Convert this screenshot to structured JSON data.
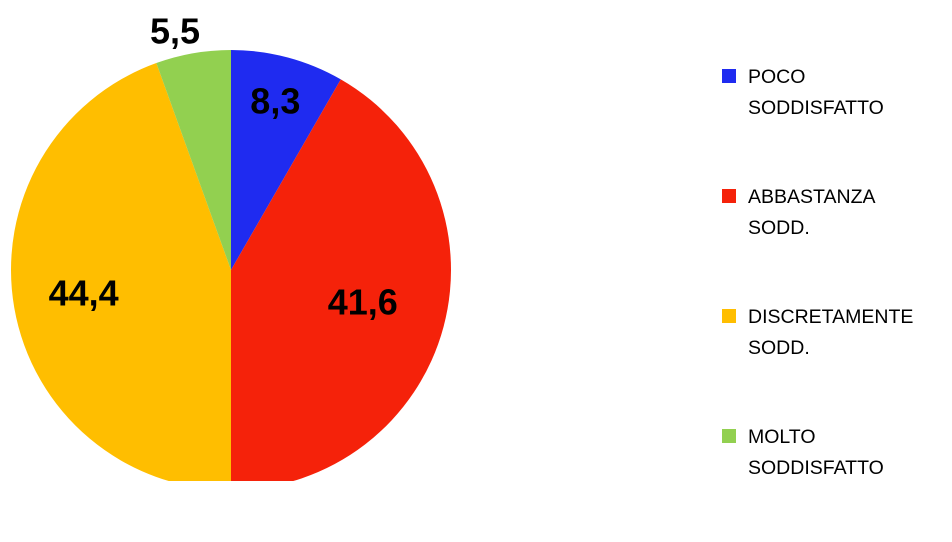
{
  "chart_data": {
    "type": "pie",
    "title": "",
    "slices": [
      {
        "label_lines": [
          "POCO",
          "SODDISFATTO"
        ],
        "value": 8.3,
        "value_label": "8,3",
        "color": "#1f2bf0"
      },
      {
        "label_lines": [
          "ABBASTANZA",
          "SODD."
        ],
        "value": 41.6,
        "value_label": "41,6",
        "color": "#f5220a"
      },
      {
        "label_lines": [
          "DISCRETAMENTE",
          "SODD."
        ],
        "value": 44.4,
        "value_label": "44,4",
        "color": "#ffbe00"
      },
      {
        "label_lines": [
          "MOLTO",
          "SODDISFATTO"
        ],
        "value": 5.5,
        "value_label": "5,5",
        "color": "#92d050"
      }
    ],
    "legend_position": "right"
  }
}
